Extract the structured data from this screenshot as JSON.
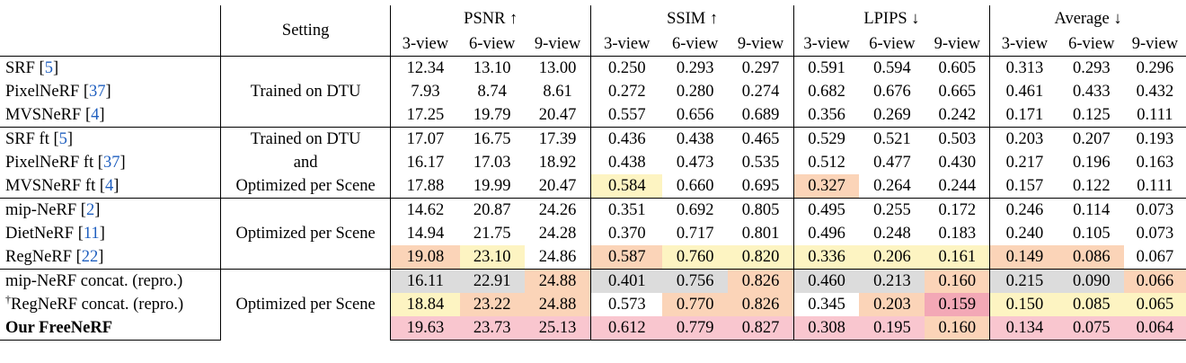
{
  "header": {
    "setting": "Setting",
    "groups": [
      "PSNR ↑",
      "SSIM ↑",
      "LPIPS ↓",
      "Average ↓"
    ],
    "views": [
      "3-view",
      "6-view",
      "9-view"
    ]
  },
  "colors": {
    "red": "#f9c6cf",
    "orange": "#fbd4b8",
    "yellow": "#fdf4c2",
    "gray": "#dcdcdc",
    "pink": "#f3a8b6"
  },
  "sections": [
    {
      "setting": [
        "Trained on DTU"
      ],
      "rows": [
        {
          "name": "SRF ",
          "ref": "5",
          "values": [
            "12.34",
            "13.10",
            "13.00",
            "0.250",
            "0.293",
            "0.297",
            "0.591",
            "0.594",
            "0.605",
            "0.313",
            "0.293",
            "0.296"
          ]
        },
        {
          "name": "PixelNeRF ",
          "ref": "37",
          "values": [
            "7.93",
            "8.74",
            "8.61",
            "0.272",
            "0.280",
            "0.274",
            "0.682",
            "0.676",
            "0.665",
            "0.461",
            "0.433",
            "0.432"
          ]
        },
        {
          "name": "MVSNeRF ",
          "ref": "4",
          "values": [
            "17.25",
            "19.79",
            "20.47",
            "0.557",
            "0.656",
            "0.689",
            "0.356",
            "0.269",
            "0.242",
            "0.171",
            "0.125",
            "0.111"
          ]
        }
      ]
    },
    {
      "setting": [
        "Trained on DTU",
        "and",
        "Optimized per Scene"
      ],
      "rows": [
        {
          "name": "SRF ft ",
          "ref": "5",
          "values": [
            "17.07",
            "16.75",
            "17.39",
            "0.436",
            "0.438",
            "0.465",
            "0.529",
            "0.521",
            "0.503",
            "0.203",
            "0.207",
            "0.193"
          ]
        },
        {
          "name": "PixelNeRF ft ",
          "ref": "37",
          "values": [
            "16.17",
            "17.03",
            "18.92",
            "0.438",
            "0.473",
            "0.535",
            "0.512",
            "0.477",
            "0.430",
            "0.217",
            "0.196",
            "0.163"
          ]
        },
        {
          "name": "MVSNeRF ft ",
          "ref": "4",
          "values": [
            "17.88",
            "19.99",
            "20.47",
            "0.584",
            "0.660",
            "0.695",
            "0.327",
            "0.264",
            "0.244",
            "0.157",
            "0.122",
            "0.111"
          ]
        }
      ]
    },
    {
      "setting": [
        "Optimized per Scene"
      ],
      "rows": [
        {
          "name": "mip-NeRF ",
          "ref": "2",
          "values": [
            "14.62",
            "20.87",
            "24.26",
            "0.351",
            "0.692",
            "0.805",
            "0.495",
            "0.255",
            "0.172",
            "0.246",
            "0.114",
            "0.073"
          ]
        },
        {
          "name": "DietNeRF ",
          "ref": "11",
          "values": [
            "14.94",
            "21.75",
            "24.28",
            "0.370",
            "0.717",
            "0.801",
            "0.496",
            "0.248",
            "0.183",
            "0.240",
            "0.105",
            "0.073"
          ]
        },
        {
          "name": "RegNeRF ",
          "ref": "22",
          "values": [
            "19.08",
            "23.10",
            "24.86",
            "0.587",
            "0.760",
            "0.820",
            "0.336",
            "0.206",
            "0.161",
            "0.149",
            "0.086",
            "0.067"
          ]
        }
      ]
    },
    {
      "setting": [
        "Optimized per Scene"
      ],
      "rows": [
        {
          "name": "mip-NeRF concat. (repro.)",
          "ref": "",
          "values": [
            "16.11",
            "22.91",
            "24.88",
            "0.401",
            "0.756",
            "0.826",
            "0.460",
            "0.213",
            "0.160",
            "0.215",
            "0.090",
            "0.066"
          ]
        },
        {
          "name": "RegNeRF concat. (repro.)",
          "ref": "",
          "sup": "†",
          "values": [
            "18.84",
            "23.22",
            "24.88",
            "0.573",
            "0.770",
            "0.826",
            "0.345",
            "0.203",
            "0.159",
            "0.150",
            "0.085",
            "0.065"
          ]
        },
        {
          "name": "Our FreeNeRF",
          "ref": "",
          "bold": true,
          "values": [
            "19.63",
            "23.73",
            "25.13",
            "0.612",
            "0.779",
            "0.827",
            "0.308",
            "0.195",
            "0.160",
            "0.134",
            "0.075",
            "0.064"
          ]
        }
      ]
    }
  ]
}
